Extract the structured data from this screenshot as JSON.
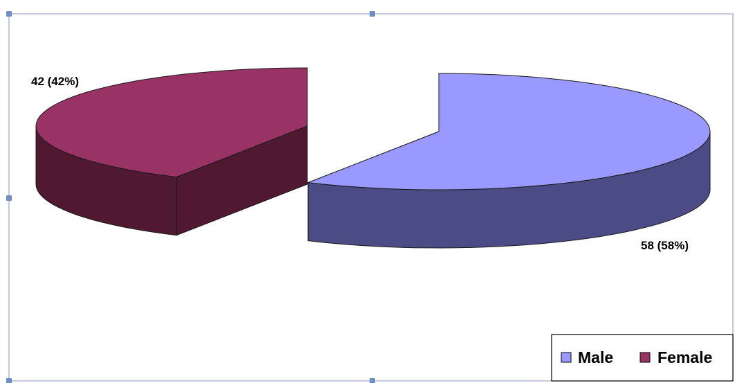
{
  "chart_data": {
    "type": "pie",
    "style": "3d-exploded",
    "categories": [
      "Male",
      "Female"
    ],
    "values": [
      58,
      42
    ],
    "percentages": [
      58,
      42
    ],
    "data_labels": [
      "58 (58%)",
      "42 (42%)"
    ],
    "legend": {
      "placement": "bottom-right",
      "entries": [
        "Male",
        "Female"
      ]
    },
    "colors": {
      "Male": {
        "top": "#9999ff",
        "side": "#4b4b86"
      },
      "Female": {
        "top": "#993366",
        "side": "#511832"
      }
    },
    "title": "",
    "xlabel": "",
    "ylabel": ""
  }
}
